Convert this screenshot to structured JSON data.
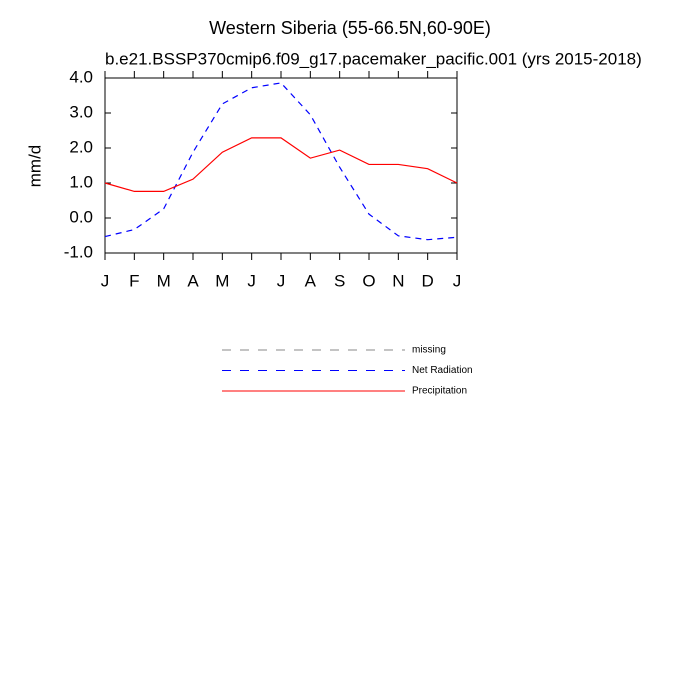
{
  "chart_data": {
    "type": "line",
    "title": "Western Siberia (55-66.5N,60-90E)",
    "subtitle": "b.e21.BSSP370cmip6.f09_g17.pacemaker_pacific.001 (yrs 2015-2018)",
    "ylabel": "mm/d",
    "categories": [
      "J",
      "F",
      "M",
      "A",
      "M",
      "J",
      "J",
      "A",
      "S",
      "O",
      "N",
      "D",
      "J"
    ],
    "ylim": [
      -1,
      4
    ],
    "yticks": [
      {
        "value": -1,
        "label": "-1.0"
      },
      {
        "value": 0,
        "label": "0.0"
      },
      {
        "value": 1,
        "label": "1.0"
      },
      {
        "value": 2,
        "label": "2.0"
      },
      {
        "value": 3,
        "label": "3.0"
      },
      {
        "value": 4,
        "label": "4.0"
      }
    ],
    "series": [
      {
        "name": "missing",
        "color": "#888888",
        "dash": true,
        "values": [
          null,
          null,
          null,
          null,
          null,
          null,
          null,
          null,
          null,
          null,
          null,
          null,
          null
        ]
      },
      {
        "name": "Net Radiation",
        "color": "#0000ff",
        "dash": true,
        "values": [
          -0.53,
          -0.33,
          0.26,
          1.88,
          3.26,
          3.72,
          3.86,
          2.95,
          1.45,
          0.11,
          -0.51,
          -0.62,
          -0.55
        ]
      },
      {
        "name": "Precipitation",
        "color": "#ff0000",
        "dash": false,
        "values": [
          1.0,
          0.76,
          0.76,
          1.11,
          1.88,
          2.29,
          2.29,
          1.71,
          1.94,
          1.53,
          1.53,
          1.41,
          1.0
        ]
      }
    ]
  }
}
